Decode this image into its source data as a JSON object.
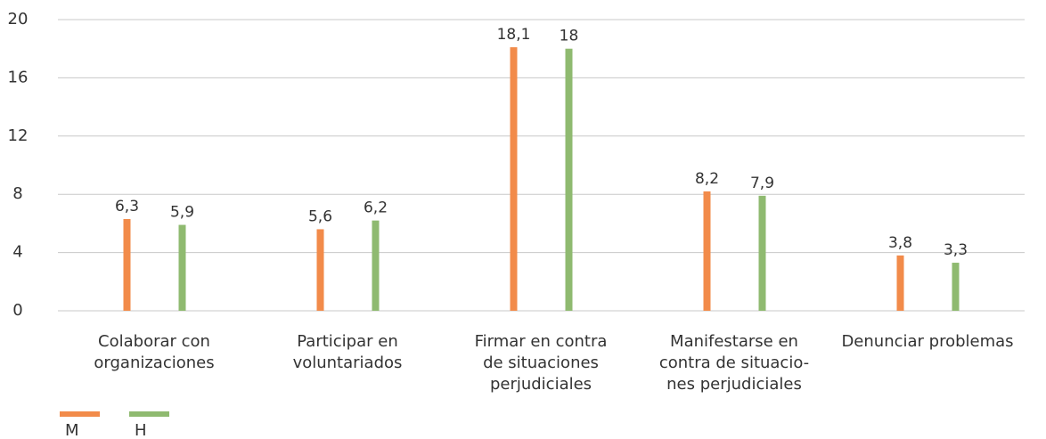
{
  "chart_data": {
    "type": "bar",
    "categories": [
      "Colaborar con\norganizaciones",
      "Participar en\nvoluntariados",
      "Firmar en contra\nde situaciones\nperjudiciales",
      "Manifestarse en\ncontra de situacio-\nnes perjudiciales",
      "Denunciar problemas"
    ],
    "series": [
      {
        "name": "M",
        "color": "#f28b4a",
        "values": [
          6.3,
          5.6,
          18.1,
          8.2,
          3.8
        ],
        "value_labels": [
          "6,3",
          "5,6",
          "18,1",
          "8,2",
          "3,8"
        ]
      },
      {
        "name": "H",
        "color": "#8fba70",
        "values": [
          5.9,
          6.2,
          18,
          7.9,
          3.3
        ],
        "value_labels": [
          "5,9",
          "6,2",
          "18",
          "7,9",
          "3,3"
        ]
      }
    ],
    "ylim": [
      0,
      20
    ],
    "yticks": [
      0,
      4,
      8,
      12,
      16,
      20
    ],
    "grid": true,
    "legend": "bottom-left"
  }
}
